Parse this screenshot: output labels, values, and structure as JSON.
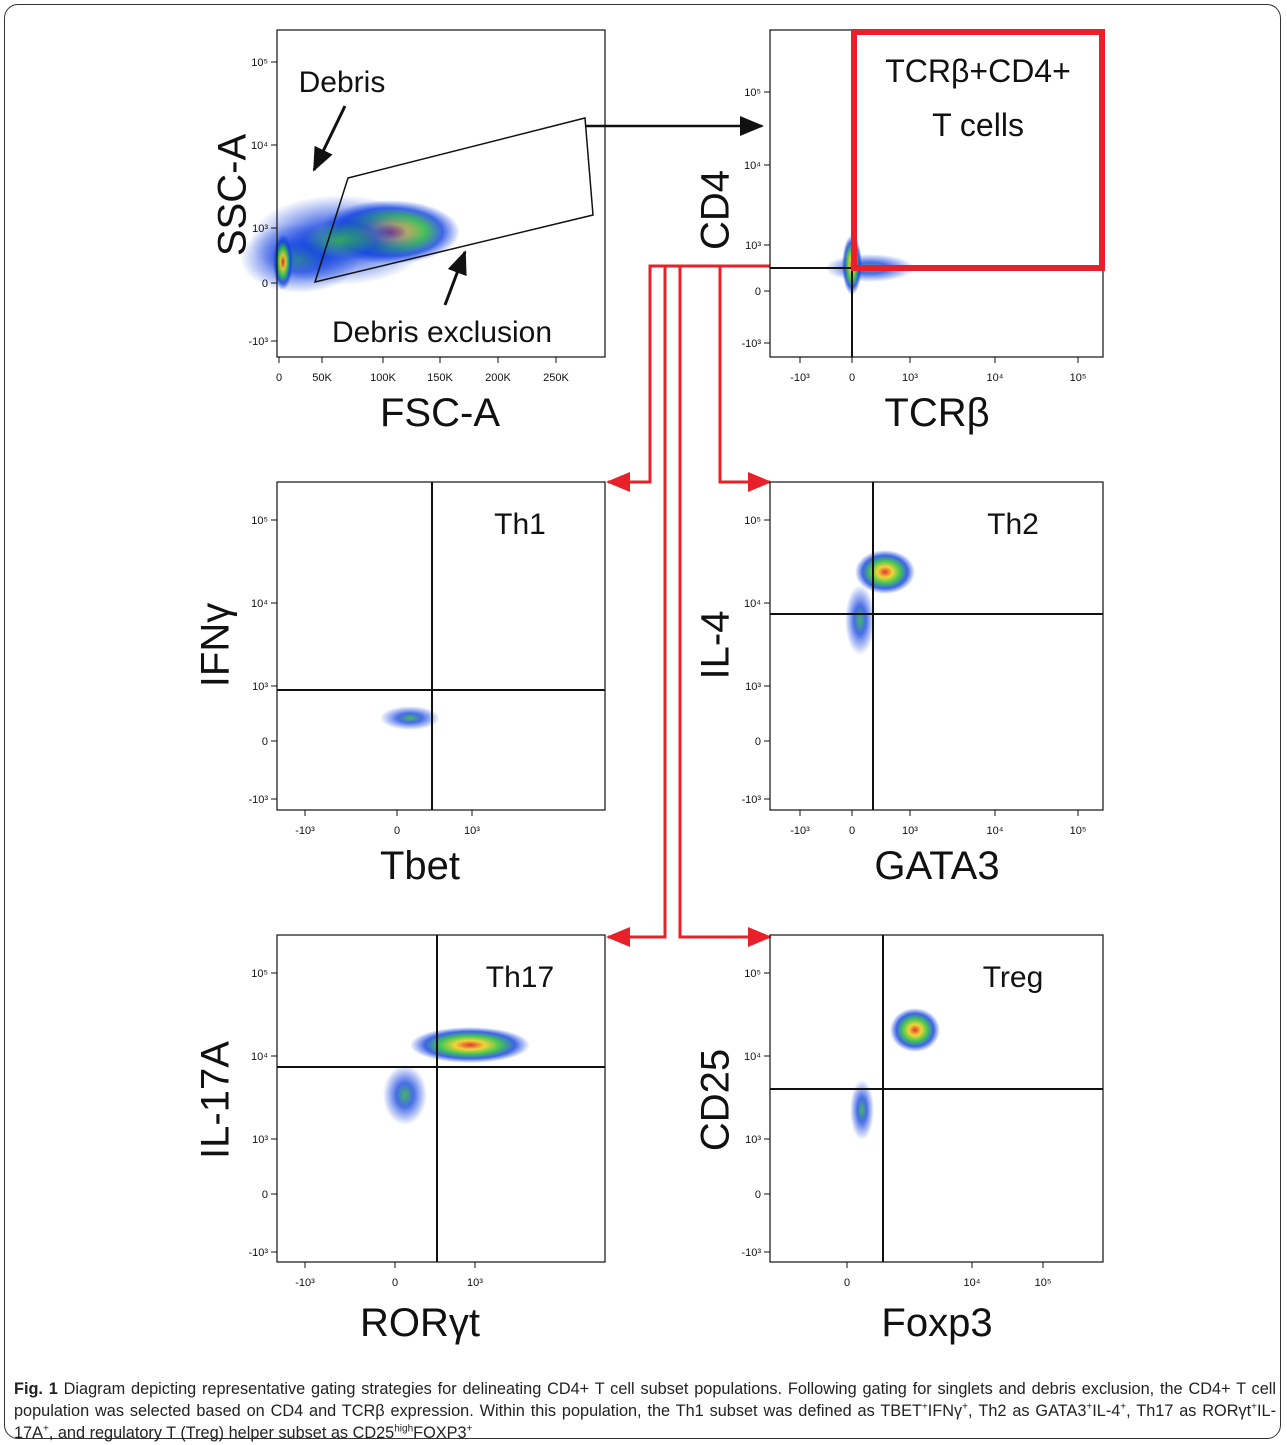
{
  "panels": [
    {
      "y_label": "SSC-A",
      "x_label": "FSC-A",
      "y_ticks": [
        "10⁵",
        "10⁴",
        "10³",
        "0",
        "-10³"
      ],
      "x_ticks": [
        "0",
        "50K",
        "100K",
        "150K",
        "200K",
        "250K"
      ],
      "annotations": [
        "Debris",
        "Debris exclusion"
      ]
    },
    {
      "y_label": "CD4",
      "x_label": "TCRβ",
      "y_ticks": [
        "10⁵",
        "10⁴",
        "10³",
        "0",
        "-10³"
      ],
      "x_ticks": [
        "-10³",
        "0",
        "10³",
        "10⁴",
        "10⁵"
      ],
      "gate_label": [
        "TCRβ+CD4+",
        "T cells"
      ]
    },
    {
      "y_label": "IFNγ",
      "x_label": "Tbet",
      "y_ticks": [
        "10⁵",
        "10⁴",
        "10³",
        "0",
        "-10³"
      ],
      "x_ticks": [
        "-10³",
        "0",
        "10³"
      ],
      "gate_label": [
        "Th1"
      ]
    },
    {
      "y_label": "IL-4",
      "x_label": "GATA3",
      "y_ticks": [
        "10⁵",
        "10⁴",
        "10³",
        "0",
        "-10³"
      ],
      "x_ticks": [
        "-10³",
        "0",
        "10³",
        "10⁴",
        "10⁵"
      ],
      "gate_label": [
        "Th2"
      ]
    },
    {
      "y_label": "IL-17A",
      "x_label": "RORγt",
      "y_ticks": [
        "10⁵",
        "10⁴",
        "10³",
        "0",
        "-10³"
      ],
      "x_ticks": [
        "-10³",
        "0",
        "10³"
      ],
      "gate_label": [
        "Th17"
      ]
    },
    {
      "y_label": "CD25",
      "x_label": "Foxp3",
      "y_ticks": [
        "10⁵",
        "10⁴",
        "10³",
        "0",
        "-10³"
      ],
      "x_ticks": [
        "0",
        "10⁴",
        "10⁵"
      ],
      "gate_label": [
        "Treg"
      ]
    }
  ],
  "caption": {
    "label": "Fig. 1",
    "runs": [
      {
        "text": " Diagram depicting representative gating strategies for delineating CD4+ T cell subset populations. Following gating for singlets and debris exclusion, the CD4+ T cell population was selected based on CD4 and TCRβ expression. Within this population, the Th1 subset was defined as TBET"
      },
      {
        "text": "+",
        "sup": true
      },
      {
        "text": "IFNγ"
      },
      {
        "text": "+",
        "sup": true
      },
      {
        "text": ", Th2 as GATA3"
      },
      {
        "text": "+",
        "sup": true
      },
      {
        "text": "IL-4"
      },
      {
        "text": "+",
        "sup": true
      },
      {
        "text": ", Th17 as RORγt"
      },
      {
        "text": "+",
        "sup": true
      },
      {
        "text": "IL-17A"
      },
      {
        "text": "+",
        "sup": true
      },
      {
        "text": ", and regulatory T (Treg) helper subset as CD25"
      },
      {
        "text": "high",
        "sup": true
      },
      {
        "text": "FOXP3"
      },
      {
        "text": "+",
        "sup": true
      }
    ]
  }
}
